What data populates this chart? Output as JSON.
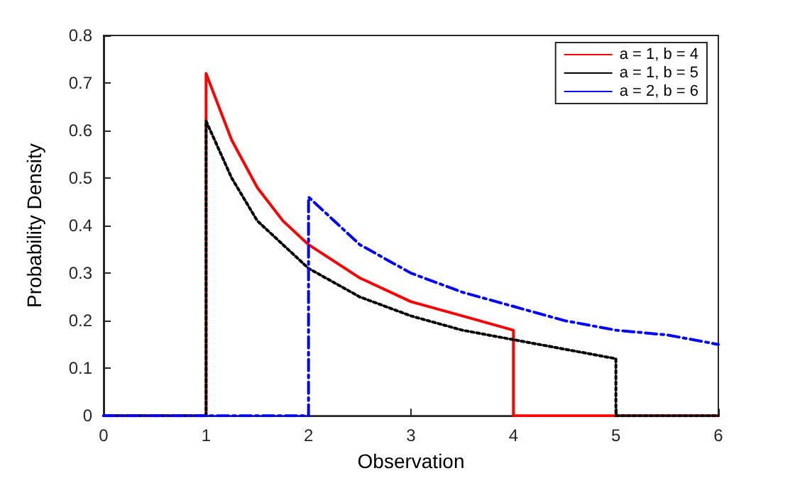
{
  "chart_data": {
    "type": "line",
    "xlabel": "Observation",
    "ylabel": "Probability Density",
    "xlim": [
      0,
      6
    ],
    "ylim": [
      0,
      0.8
    ],
    "xticks": [
      0,
      1,
      2,
      3,
      4,
      5,
      6
    ],
    "yticks": [
      0,
      0.1,
      0.2,
      0.3,
      0.4,
      0.5,
      0.6,
      0.7,
      0.8
    ],
    "grid": false,
    "legend": "top right",
    "marker": "none",
    "series": [
      {
        "name": "a = 1, b = 4",
        "color": "#ff0000",
        "line_style": "solid",
        "x": [
          0,
          1,
          1,
          1.25,
          1.5,
          1.75,
          2,
          2.5,
          3,
          3.5,
          4,
          4,
          6
        ],
        "values": [
          0,
          0,
          0.72,
          0.58,
          0.48,
          0.41,
          0.36,
          0.29,
          0.24,
          0.21,
          0.18,
          0,
          0
        ]
      },
      {
        "name": "a = 1, b = 5",
        "color": "#000000",
        "line_style": "dotted",
        "x": [
          0,
          1,
          1,
          1.25,
          1.5,
          1.75,
          2,
          2.5,
          3,
          3.5,
          4,
          4.5,
          5,
          5,
          6
        ],
        "values": [
          0,
          0,
          0.62,
          0.5,
          0.41,
          0.36,
          0.31,
          0.25,
          0.21,
          0.18,
          0.16,
          0.14,
          0.12,
          0,
          0
        ]
      },
      {
        "name": "a = 2, b = 6",
        "color": "#0000ff",
        "line_style": "dashed",
        "x": [
          0,
          2,
          2,
          2.5,
          3,
          3.5,
          4,
          4.5,
          5,
          5.5,
          6
        ],
        "values": [
          0,
          0,
          0.46,
          0.36,
          0.3,
          0.26,
          0.23,
          0.2,
          0.18,
          0.17,
          0.15
        ]
      }
    ]
  }
}
